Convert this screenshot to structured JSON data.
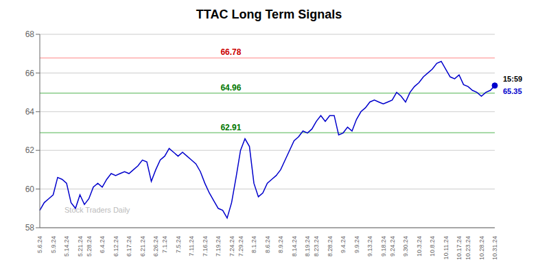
{
  "chart_data": {
    "type": "line",
    "title": "TTAC Long Term Signals",
    "watermark": "Stock Traders Daily",
    "color": "#0000cc",
    "grid": true,
    "ylim": [
      58,
      68
    ],
    "yticks": [
      58,
      60,
      62,
      64,
      66,
      68
    ],
    "categories": [
      "5.6.24",
      null,
      null,
      "5.9.24",
      null,
      null,
      "5.14.24",
      null,
      null,
      "5.21.24",
      null,
      "5.28.24",
      null,
      null,
      "6.4.24",
      null,
      null,
      "6.12.24",
      null,
      null,
      "6.17.24",
      null,
      null,
      "6.21.24",
      null,
      null,
      "6.26.24",
      null,
      "7.1.24",
      null,
      null,
      "7.5.24",
      null,
      null,
      "7.11.24",
      null,
      null,
      "7.16.24",
      null,
      null,
      "7.19.24",
      null,
      null,
      "7.24.24",
      null,
      "7.29.24",
      null,
      null,
      "8.1.24",
      null,
      null,
      "8.6.24",
      null,
      null,
      "8.9.24",
      null,
      null,
      "8.14.24",
      null,
      null,
      "8.19.24",
      null,
      "8.23.24",
      null,
      null,
      "8.28.24",
      null,
      null,
      "9.4.24",
      null,
      null,
      "9.9.24",
      null,
      null,
      "9.13.24",
      null,
      null,
      "9.18.24",
      null,
      "9.24.24",
      null,
      null,
      "9.30.24",
      null,
      null,
      "10.3.24",
      null,
      null,
      "10.8.24",
      null,
      null,
      "10.11.24",
      null,
      null,
      "10.17.24",
      null,
      "10.23.24",
      null,
      null,
      "10.28.24",
      null,
      null,
      "10.31.24"
    ],
    "values": [
      58.9,
      59.3,
      59.5,
      59.7,
      60.6,
      60.5,
      60.3,
      59.3,
      59.0,
      59.7,
      59.2,
      59.5,
      60.1,
      60.3,
      60.1,
      60.5,
      60.8,
      60.7,
      60.8,
      60.9,
      60.8,
      61.0,
      61.2,
      61.5,
      61.4,
      60.4,
      61.0,
      61.5,
      61.7,
      62.1,
      61.9,
      61.7,
      61.9,
      61.7,
      61.5,
      61.3,
      60.9,
      60.3,
      59.8,
      59.4,
      59.0,
      58.9,
      58.5,
      59.3,
      60.6,
      62.0,
      62.6,
      62.2,
      60.3,
      59.6,
      59.8,
      60.3,
      60.5,
      60.7,
      61.0,
      61.5,
      62.0,
      62.5,
      62.7,
      63.0,
      62.9,
      63.1,
      63.5,
      63.8,
      63.5,
      63.8,
      63.8,
      62.8,
      62.9,
      63.2,
      63.0,
      63.6,
      64.0,
      64.2,
      64.5,
      64.6,
      64.5,
      64.4,
      64.5,
      64.6,
      65.0,
      64.8,
      64.5,
      65.0,
      65.3,
      65.5,
      65.8,
      66.0,
      66.2,
      66.5,
      66.6,
      66.2,
      65.8,
      65.7,
      65.9,
      65.4,
      65.3,
      65.1,
      65.0,
      64.8,
      65.0,
      65.1,
      65.35
    ],
    "reference_lines": [
      {
        "value": 66.78,
        "label": "66.78",
        "color": "#ffaaaa",
        "label_color": "#cc0000"
      },
      {
        "value": 64.96,
        "label": "64.96",
        "color": "#88cc88",
        "label_color": "#007700"
      },
      {
        "value": 62.91,
        "label": "62.91",
        "color": "#88cc88",
        "label_color": "#007700"
      }
    ],
    "end_label": {
      "time": "15:59",
      "value": 65.35,
      "label": "65.35",
      "color": "#0000cc",
      "time_color": "#000000"
    }
  }
}
